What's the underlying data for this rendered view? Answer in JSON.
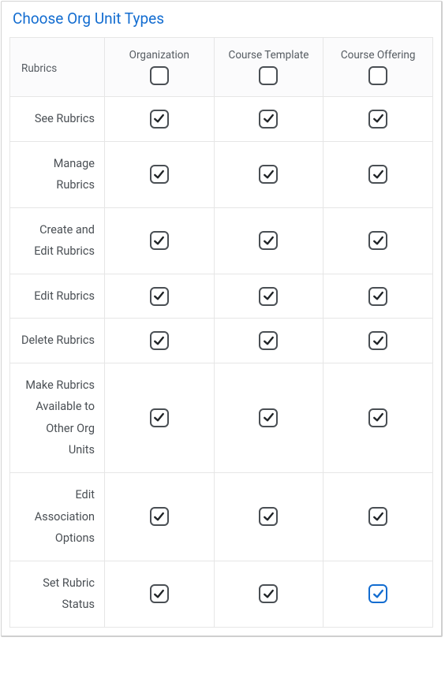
{
  "accent_color": "#126cd0",
  "panel": {
    "title": "Choose Org Unit Types"
  },
  "table": {
    "row_header": "Rubrics",
    "columns": [
      {
        "key": "organization",
        "label": "Organization",
        "header_checked": false
      },
      {
        "key": "course_template",
        "label": "Course Template",
        "header_checked": false
      },
      {
        "key": "course_offering",
        "label": "Course Offering",
        "header_checked": false
      }
    ],
    "rows": [
      {
        "key": "see_rubrics",
        "label": "See Rubrics",
        "cells": [
          {
            "checked": true
          },
          {
            "checked": true
          },
          {
            "checked": true
          }
        ]
      },
      {
        "key": "manage_rubrics",
        "label": "Manage Rubrics",
        "cells": [
          {
            "checked": true
          },
          {
            "checked": true
          },
          {
            "checked": true
          }
        ]
      },
      {
        "key": "create_edit",
        "label": "Create and Edit Rubrics",
        "cells": [
          {
            "checked": true
          },
          {
            "checked": true
          },
          {
            "checked": true
          }
        ]
      },
      {
        "key": "edit_rubrics",
        "label": "Edit Rubrics",
        "cells": [
          {
            "checked": true
          },
          {
            "checked": true
          },
          {
            "checked": true
          }
        ]
      },
      {
        "key": "delete_rubrics",
        "label": "Delete Rubrics",
        "cells": [
          {
            "checked": true
          },
          {
            "checked": true
          },
          {
            "checked": true
          }
        ]
      },
      {
        "key": "make_available",
        "label": "Make Rubrics Available to Other Org Units",
        "cells": [
          {
            "checked": true
          },
          {
            "checked": true
          },
          {
            "checked": true
          }
        ]
      },
      {
        "key": "edit_assoc",
        "label": "Edit Association Options",
        "cells": [
          {
            "checked": true
          },
          {
            "checked": true
          },
          {
            "checked": true
          }
        ]
      },
      {
        "key": "set_status",
        "label": "Set Rubric Status",
        "cells": [
          {
            "checked": true
          },
          {
            "checked": true
          },
          {
            "checked": true,
            "focused": true
          }
        ]
      }
    ]
  }
}
